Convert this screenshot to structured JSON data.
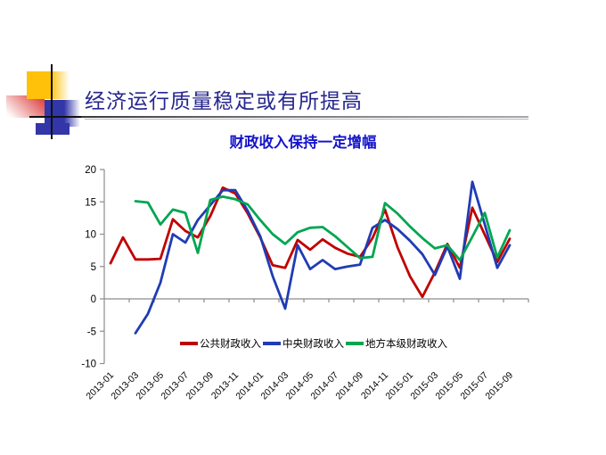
{
  "slide": {
    "title": "经济运行质量稳定或有所提高",
    "subtitle": "财政收入保持一定增幅"
  },
  "theme": {
    "title_color": "#26268F",
    "subtitle_color": "#1414CC",
    "axis_color": "#8C8C8C",
    "label_color": "#000000",
    "decor_yellow": "#FFC10A",
    "decor_red": "#DD4444",
    "decor_blue": "#3236A8"
  },
  "chart_data": {
    "type": "line",
    "title": "财政收入保持一定增幅",
    "xlabel": "",
    "ylabel": "",
    "ylim": [
      -10,
      20
    ],
    "ytick_step": 5,
    "grid": false,
    "legend_position": "bottom-inside",
    "x_label_every": 2,
    "categories": [
      "2013-01",
      "2013-02",
      "2013-03",
      "2013-04",
      "2013-05",
      "2013-06",
      "2013-07",
      "2013-08",
      "2013-09",
      "2013-10",
      "2013-11",
      "2013-12",
      "2014-01",
      "2014-02",
      "2014-03",
      "2014-04",
      "2014-05",
      "2014-06",
      "2014-07",
      "2014-08",
      "2014-09",
      "2014-10",
      "2014-11",
      "2014-12",
      "2015-01",
      "2015-02",
      "2015-03",
      "2015-04",
      "2015-05",
      "2015-06",
      "2015-07",
      "2015-08",
      "2015-09"
    ],
    "x_tick_labels": [
      "2013-01",
      "2013-03",
      "2013-05",
      "2013-07",
      "2013-09",
      "2013-11",
      "2014-01",
      "2014-03",
      "2014-05",
      "2014-07",
      "2014-09",
      "2014-11",
      "2015-01",
      "2015-03",
      "2015-05",
      "2015-07",
      "2015-09"
    ],
    "series": [
      {
        "name": "公共财政收入",
        "color": "#C00000",
        "values": [
          5.5,
          9.5,
          6.1,
          6.1,
          6.2,
          12.3,
          10.5,
          9.5,
          12.8,
          17.2,
          16.3,
          13.2,
          9.5,
          5.2,
          4.8,
          9.1,
          7.6,
          9.2,
          7.9,
          7.0,
          6.5,
          9.4,
          13.8,
          8.0,
          3.5,
          0.3,
          4.1,
          8.5,
          4.8,
          14.1,
          9.9,
          5.7,
          9.3
        ]
      },
      {
        "name": "中央财政收入",
        "color": "#203CB4",
        "values": [
          null,
          null,
          -5.3,
          -2.3,
          2.5,
          10.0,
          8.7,
          12.2,
          14.5,
          16.8,
          16.8,
          13.6,
          9.7,
          3.5,
          -1.5,
          8.3,
          4.6,
          6.0,
          4.6,
          5.0,
          5.3,
          11.0,
          12.2,
          10.8,
          9.0,
          6.9,
          3.7,
          8.1,
          3.1,
          18.1,
          11.5,
          4.8,
          8.3
        ]
      },
      {
        "name": "地方本级财政收入",
        "color": "#00A651",
        "values": [
          null,
          null,
          15.1,
          14.9,
          11.5,
          13.8,
          13.3,
          7.1,
          15.3,
          15.8,
          15.4,
          14.6,
          12.2,
          10.0,
          8.5,
          10.3,
          11.0,
          11.1,
          9.7,
          8.0,
          6.3,
          6.5,
          14.8,
          13.2,
          11.2,
          9.4,
          7.8,
          8.3,
          6.0,
          9.6,
          13.3,
          6.4,
          10.6
        ]
      }
    ]
  }
}
